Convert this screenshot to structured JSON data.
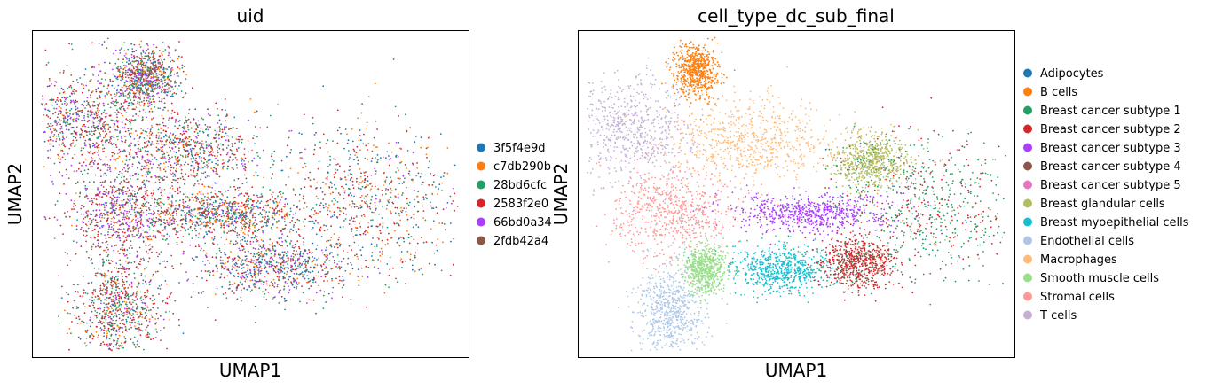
{
  "chart_data": [
    {
      "type": "scatter",
      "title": "uid",
      "xlabel": "UMAP1",
      "ylabel": "UMAP2",
      "grid": false,
      "legend_position": "right",
      "series": [
        {
          "name": "3f5f4e9d",
          "color": "#1f77b4"
        },
        {
          "name": "c7db290b",
          "color": "#ff7f0e"
        },
        {
          "name": "28bd6cfc",
          "color": "#279e68"
        },
        {
          "name": "2583f2e0",
          "color": "#d62728"
        },
        {
          "name": "66bd0a34",
          "color": "#aa40fc"
        },
        {
          "name": "2fdb42a4",
          "color": "#8c564b"
        }
      ],
      "clusters": [
        {
          "x": 0.26,
          "y": 0.86,
          "sx": 0.035,
          "sy": 0.045,
          "weights": [
            0.1,
            0.15,
            0.25,
            0.15,
            0.15,
            0.2
          ]
        },
        {
          "x": 0.12,
          "y": 0.73,
          "sx": 0.07,
          "sy": 0.08,
          "weights": [
            0.1,
            0.1,
            0.15,
            0.25,
            0.2,
            0.2
          ]
        },
        {
          "x": 0.35,
          "y": 0.64,
          "sx": 0.09,
          "sy": 0.06,
          "weights": [
            0.15,
            0.15,
            0.2,
            0.2,
            0.15,
            0.15
          ]
        },
        {
          "x": 0.21,
          "y": 0.44,
          "sx": 0.07,
          "sy": 0.07,
          "weights": [
            0.05,
            0.05,
            0.1,
            0.25,
            0.25,
            0.3
          ]
        },
        {
          "x": 0.44,
          "y": 0.44,
          "sx": 0.09,
          "sy": 0.035,
          "weights": [
            0.15,
            0.2,
            0.2,
            0.25,
            0.1,
            0.1
          ]
        },
        {
          "x": 0.55,
          "y": 0.28,
          "sx": 0.09,
          "sy": 0.05,
          "weights": [
            0.25,
            0.1,
            0.15,
            0.2,
            0.15,
            0.15
          ]
        },
        {
          "x": 0.77,
          "y": 0.48,
          "sx": 0.11,
          "sy": 0.12,
          "weights": [
            0.25,
            0.2,
            0.15,
            0.25,
            0.05,
            0.1
          ]
        },
        {
          "x": 0.2,
          "y": 0.15,
          "sx": 0.05,
          "sy": 0.08,
          "weights": [
            0.1,
            0.1,
            0.2,
            0.3,
            0.1,
            0.2
          ]
        }
      ]
    },
    {
      "type": "scatter",
      "title": "cell_type_dc_sub_final",
      "xlabel": "UMAP1",
      "ylabel": "UMAP2",
      "grid": false,
      "legend_position": "right",
      "series": [
        {
          "name": "Adipocytes",
          "color": "#1f77b4"
        },
        {
          "name": "B cells",
          "color": "#ff7f0e"
        },
        {
          "name": "Breast cancer subtype 1",
          "color": "#279e68"
        },
        {
          "name": "Breast cancer subtype 2",
          "color": "#d62728"
        },
        {
          "name": "Breast cancer subtype 3",
          "color": "#aa40fc"
        },
        {
          "name": "Breast cancer subtype 4",
          "color": "#8c564b"
        },
        {
          "name": "Breast cancer subtype 5",
          "color": "#e377c2"
        },
        {
          "name": "Breast glandular cells",
          "color": "#b5bd61"
        },
        {
          "name": "Breast myoepithelial cells",
          "color": "#17becf"
        },
        {
          "name": "Endothelial cells",
          "color": "#aec7e8"
        },
        {
          "name": "Macrophages",
          "color": "#ffbb78"
        },
        {
          "name": "Smooth muscle cells",
          "color": "#98df8a"
        },
        {
          "name": "Stromal cells",
          "color": "#ff9896"
        },
        {
          "name": "T cells",
          "color": "#c5b0d5"
        }
      ],
      "clusters": [
        {
          "x": 0.27,
          "y": 0.88,
          "sx": 0.025,
          "sy": 0.04,
          "weights": [
            0,
            1,
            0,
            0,
            0,
            0,
            0,
            0,
            0,
            0,
            0,
            0,
            0,
            0
          ]
        },
        {
          "x": 0.12,
          "y": 0.7,
          "sx": 0.07,
          "sy": 0.08,
          "weights": [
            0,
            0,
            0,
            0,
            0,
            0,
            0,
            0,
            0,
            0,
            0,
            0,
            0,
            1
          ]
        },
        {
          "x": 0.4,
          "y": 0.66,
          "sx": 0.1,
          "sy": 0.06,
          "weights": [
            0,
            0,
            0,
            0,
            0,
            0,
            0,
            0,
            0,
            0,
            1,
            0,
            0,
            0
          ]
        },
        {
          "x": 0.22,
          "y": 0.45,
          "sx": 0.075,
          "sy": 0.07,
          "weights": [
            0,
            0,
            0,
            0,
            0,
            0,
            0,
            0,
            0,
            0,
            0,
            0,
            1,
            0
          ]
        },
        {
          "x": 0.53,
          "y": 0.44,
          "sx": 0.09,
          "sy": 0.03,
          "weights": [
            0,
            0,
            0,
            0,
            1,
            0,
            0,
            0,
            0,
            0,
            0,
            0,
            0,
            0
          ]
        },
        {
          "x": 0.46,
          "y": 0.27,
          "sx": 0.06,
          "sy": 0.035,
          "weights": [
            0,
            0,
            0,
            0,
            0,
            0,
            0,
            0,
            1,
            0,
            0,
            0,
            0,
            0
          ]
        },
        {
          "x": 0.8,
          "y": 0.47,
          "sx": 0.11,
          "sy": 0.11,
          "weights": [
            0.02,
            0,
            0.55,
            0.35,
            0,
            0.05,
            0.01,
            0.02,
            0,
            0,
            0,
            0,
            0,
            0
          ]
        },
        {
          "x": 0.64,
          "y": 0.29,
          "sx": 0.04,
          "sy": 0.04,
          "weights": [
            0,
            0,
            0.1,
            0.75,
            0,
            0.15,
            0,
            0,
            0,
            0,
            0,
            0,
            0,
            0
          ]
        },
        {
          "x": 0.67,
          "y": 0.6,
          "sx": 0.04,
          "sy": 0.04,
          "weights": [
            0,
            0,
            0.1,
            0,
            0,
            0,
            0,
            0.9,
            0,
            0,
            0,
            0,
            0,
            0
          ]
        },
        {
          "x": 0.21,
          "y": 0.14,
          "sx": 0.04,
          "sy": 0.08,
          "weights": [
            0,
            0,
            0,
            0,
            0,
            0,
            0,
            0,
            0,
            1,
            0,
            0,
            0,
            0
          ]
        },
        {
          "x": 0.29,
          "y": 0.27,
          "sx": 0.025,
          "sy": 0.04,
          "weights": [
            0,
            0,
            0,
            0,
            0,
            0,
            0,
            0,
            0,
            0,
            0,
            1,
            0,
            0
          ]
        }
      ]
    }
  ]
}
